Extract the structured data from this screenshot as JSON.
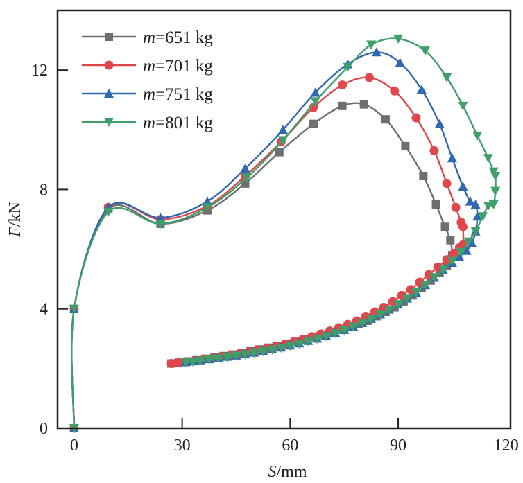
{
  "chart_data": {
    "type": "line",
    "title": "",
    "xlabel": "S/mm",
    "xlabel_italic_part": "S",
    "xlabel_unit": "/mm",
    "ylabel": "F/kN",
    "ylabel_italic_part": "F",
    "ylabel_unit": "/kN",
    "xlim": [
      -4.6,
      121.2
    ],
    "ylim": [
      0,
      14
    ],
    "xticks": [
      0,
      30,
      60,
      90,
      120
    ],
    "yticks": [
      0,
      4,
      8,
      12
    ],
    "xtick_labels": [
      "0",
      "30",
      "60",
      "90",
      "120"
    ],
    "ytick_labels": [
      "0",
      "4",
      "8",
      "12"
    ],
    "grid": false,
    "legend": {
      "position": "top-left"
    },
    "series": [
      {
        "name": "m=651 kg",
        "name_italic": "m",
        "name_rest": "=651 kg",
        "color": "#6e6e6e",
        "marker": "square",
        "x": [
          0,
          0,
          9.5,
          24,
          37,
          47.5,
          57,
          66.5,
          74.5,
          80.5,
          86.5,
          92,
          97,
          100.5,
          103,
          104.5,
          105,
          104.5,
          103.5,
          101.5,
          99,
          96.5,
          94,
          91.5,
          89,
          86.5,
          84,
          81.5,
          79,
          76.5,
          74,
          71.5,
          69,
          66.5,
          64,
          61.5,
          59,
          56.5,
          54,
          51.5,
          49,
          46.5,
          44,
          41.5,
          39,
          36.5,
          34,
          31.5,
          29,
          27
        ],
        "y": [
          0,
          4,
          7.35,
          6.85,
          7.3,
          8.2,
          9.25,
          10.2,
          10.8,
          10.85,
          10.35,
          9.45,
          8.45,
          7.5,
          6.75,
          6.3,
          5.8,
          5.6,
          5.45,
          5.2,
          4.95,
          4.7,
          4.45,
          4.25,
          4.05,
          3.9,
          3.75,
          3.6,
          3.5,
          3.4,
          3.3,
          3.2,
          3.12,
          3.05,
          2.98,
          2.9,
          2.83,
          2.76,
          2.7,
          2.64,
          2.58,
          2.52,
          2.47,
          2.42,
          2.37,
          2.33,
          2.28,
          2.24,
          2.2,
          2.17
        ]
      },
      {
        "name": "m=701 kg",
        "name_italic": "m",
        "name_rest": "=701 kg",
        "color": "#e0474c",
        "marker": "circle",
        "x": [
          0,
          0,
          9.5,
          24,
          37,
          47.5,
          57.5,
          66.5,
          74.5,
          82,
          89,
          95,
          100,
          103.5,
          106,
          107.5,
          108,
          108,
          107,
          105.5,
          103.5,
          101,
          98.5,
          96,
          93.5,
          91,
          88.5,
          86,
          83.5,
          81,
          78.5,
          76,
          73.5,
          71,
          68.5,
          66,
          63.5,
          61,
          58.5,
          56,
          53.5,
          51,
          48.5,
          46,
          43.5,
          41,
          38.5,
          36,
          33.5,
          31,
          29,
          27
        ],
        "y": [
          0,
          4,
          7.4,
          7.0,
          7.45,
          8.45,
          9.6,
          10.75,
          11.5,
          11.75,
          11.3,
          10.4,
          9.3,
          8.2,
          7.4,
          6.9,
          6.75,
          6.15,
          6.05,
          5.85,
          5.65,
          5.4,
          5.15,
          4.9,
          4.65,
          4.45,
          4.25,
          4.05,
          3.9,
          3.75,
          3.6,
          3.48,
          3.37,
          3.26,
          3.16,
          3.07,
          2.98,
          2.9,
          2.82,
          2.75,
          2.68,
          2.62,
          2.56,
          2.5,
          2.45,
          2.4,
          2.35,
          2.31,
          2.27,
          2.23,
          2.2,
          2.17
        ]
      },
      {
        "name": "m=751 kg",
        "name_italic": "m",
        "name_rest": "=751 kg",
        "color": "#3068b0",
        "marker": "triangle-up",
        "x": [
          0,
          0,
          9.5,
          24,
          37,
          47.5,
          58,
          67,
          76,
          84,
          90.5,
          96.5,
          101.5,
          105,
          108,
          110,
          111.5,
          112,
          111.5,
          110.5,
          109,
          107,
          105,
          102.5,
          100,
          97.5,
          95,
          92.5,
          90,
          87.5,
          85,
          82.5,
          80,
          77.5,
          75,
          72.5,
          70,
          67.5,
          65,
          62.5,
          60,
          57.5,
          55,
          52.5,
          50,
          47.5,
          45,
          42.5,
          40,
          37.5,
          35,
          33,
          31
        ],
        "y": [
          0,
          4,
          7.4,
          7.05,
          7.6,
          8.7,
          10.0,
          11.25,
          12.2,
          12.6,
          12.25,
          11.35,
          10.2,
          9.05,
          8.1,
          7.6,
          7.5,
          7.1,
          6.6,
          6.2,
          5.95,
          5.75,
          5.55,
          5.3,
          5.05,
          4.8,
          4.55,
          4.35,
          4.15,
          3.98,
          3.82,
          3.67,
          3.53,
          3.41,
          3.3,
          3.2,
          3.1,
          3.01,
          2.93,
          2.85,
          2.78,
          2.71,
          2.65,
          2.59,
          2.54,
          2.49,
          2.44,
          2.4,
          2.36,
          2.32,
          2.28,
          2.25,
          2.22
        ]
      },
      {
        "name": "m=801 kg",
        "name_italic": "m",
        "name_rest": "=801 kg",
        "color": "#3f9e6a",
        "marker": "triangle-down",
        "x": [
          0,
          0,
          9.5,
          24,
          37,
          48,
          58,
          67,
          76,
          82.5,
          90,
          97.5,
          103.5,
          108,
          112,
          115,
          116.5,
          117,
          117,
          116.5,
          115,
          113.5,
          111.5,
          109.5,
          107.5,
          105,
          102.5,
          100,
          97.5,
          95,
          92.5,
          90,
          87.5,
          85,
          82.5,
          80,
          77.5,
          75,
          72.5,
          70,
          67.5,
          65,
          62.5,
          60,
          57.5,
          55,
          52.5,
          50,
          47.5,
          45,
          42.5,
          40,
          37.5,
          35,
          33,
          31
        ],
        "y": [
          0,
          4,
          7.25,
          6.85,
          7.4,
          8.4,
          9.65,
          10.95,
          12.1,
          12.85,
          13.05,
          12.65,
          11.75,
          10.8,
          9.8,
          9.05,
          8.6,
          8.45,
          7.95,
          7.5,
          7.45,
          7.1,
          6.6,
          6.25,
          5.9,
          5.6,
          5.3,
          5.05,
          4.8,
          4.55,
          4.35,
          4.15,
          3.97,
          3.8,
          3.65,
          3.52,
          3.4,
          3.28,
          3.18,
          3.08,
          2.99,
          2.91,
          2.83,
          2.76,
          2.69,
          2.63,
          2.57,
          2.52,
          2.47,
          2.42,
          2.38,
          2.34,
          2.3,
          2.26,
          2.23,
          2.2
        ]
      }
    ]
  }
}
